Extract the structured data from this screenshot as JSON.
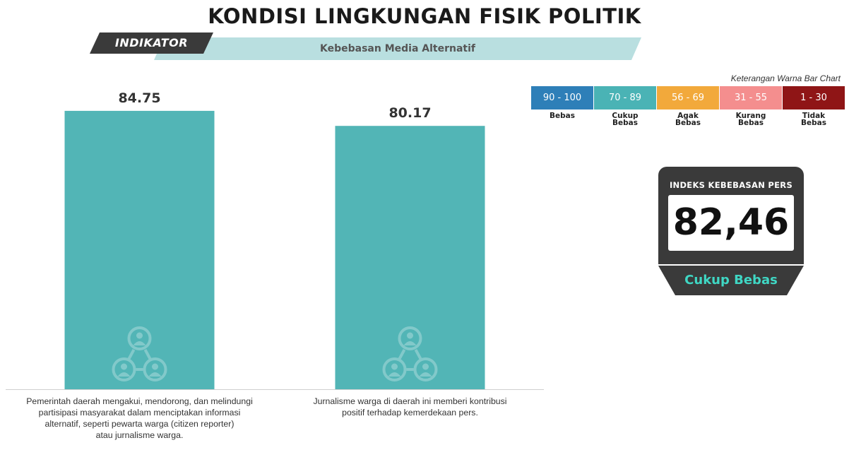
{
  "header": {
    "title": "KONDISI LINGKUNGAN FISIK POLITIK",
    "indicator_tag": "INDIKATOR",
    "indicator_value": "Kebebasan Media Alternatif"
  },
  "legend": {
    "title": "Keterangan Warna Bar Chart",
    "items": [
      {
        "range": "90 - 100",
        "label": "Bebas",
        "color": "#2e7fb8"
      },
      {
        "range": "70 - 89",
        "label": "Cukup Bebas",
        "color": "#4ab3b5"
      },
      {
        "range": "56 - 69",
        "label": "Agak Bebas",
        "color": "#f2a93b"
      },
      {
        "range": "31 - 55",
        "label": "Kurang Bebas",
        "color": "#f48e8e"
      },
      {
        "range": "1 - 30",
        "label": "Tidak Bebas",
        "color": "#8f1516"
      }
    ]
  },
  "index": {
    "title": "INDEKS KEBEBASAN PERS",
    "value": "82,46",
    "status": "Cukup Bebas"
  },
  "chart_data": {
    "type": "bar",
    "categories": [
      "Pemerintah daerah mengakui, mendorong, dan melindungi partisipasi masyarakat dalam menciptakan informasi alternatif, seperti pewarta warga (citizen reporter) atau jurnalisme warga.",
      "Jurnalisme warga di daerah ini memberi kontribusi positif terhadap kemerdekaan pers."
    ],
    "values": [
      84.75,
      80.17
    ],
    "value_labels": [
      "84.75",
      "80.17"
    ],
    "ylim": [
      0,
      100
    ],
    "bar_color": "#52b5b6",
    "grid": false,
    "icon": "people-network-icon"
  }
}
